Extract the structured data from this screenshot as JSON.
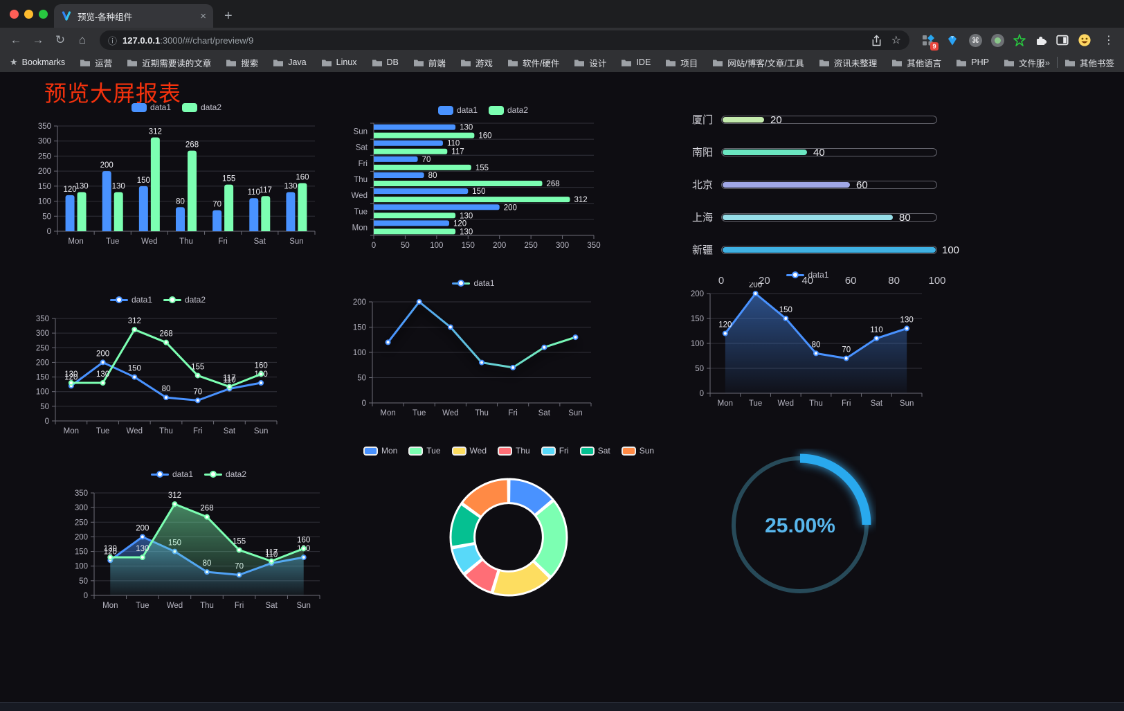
{
  "browser": {
    "traffic_lights": [
      "#ff5f57",
      "#febc2e",
      "#28c840"
    ],
    "tab": {
      "title": "预览-各种组件"
    },
    "glyphs": {
      "close": "×",
      "new_tab": "+",
      "back": "←",
      "forward": "→",
      "reload": "↻",
      "home": "⌂",
      "info": "ⓘ",
      "star": "☆",
      "command": "⌘",
      "menu": "⋮",
      "chevron": "»",
      "bookmark_star": "★"
    },
    "address": {
      "host": "127.0.0.1",
      "rest": ":3000/#/chart/preview/9"
    },
    "extensions_badge": "9",
    "bookmarks_label": "Bookmarks",
    "bookmarks": [
      "运营",
      "近期需要读的文章",
      "搜索",
      "Java",
      "Linux",
      "DB",
      "前端",
      "游戏",
      "软件/硬件",
      "设计",
      "IDE",
      "项目",
      "网站/博客/文章/工具",
      "资讯未整理",
      "其他语言",
      "PHP",
      "文件服务器"
    ],
    "other_bookmarks": "其他书签"
  },
  "page": {
    "title": "预览大屏报表",
    "title_color": "#f5320d",
    "background": "#0e0d12"
  },
  "chart_data": [
    {
      "id": "grouped-bar",
      "type": "bar",
      "legend_position": "top",
      "grid": true,
      "labels": true,
      "categories": [
        "Mon",
        "Tue",
        "Wed",
        "Thu",
        "Fri",
        "Sat",
        "Sun"
      ],
      "series": [
        {
          "name": "data1",
          "color": "#4992ff",
          "values": [
            120,
            200,
            150,
            80,
            70,
            110,
            130
          ]
        },
        {
          "name": "data2",
          "color": "#7cffb2",
          "values": [
            130,
            130,
            312,
            268,
            155,
            117,
            160
          ]
        }
      ],
      "ylim": [
        0,
        350
      ],
      "ytick": 50
    },
    {
      "id": "grouped-hbar",
      "type": "bar",
      "orientation": "horizontal",
      "legend_position": "top",
      "labels": true,
      "categories": [
        "Mon",
        "Tue",
        "Wed",
        "Thu",
        "Fri",
        "Sat",
        "Sun"
      ],
      "series": [
        {
          "name": "data1",
          "color": "#4992ff",
          "values": [
            120,
            200,
            150,
            80,
            70,
            110,
            130
          ]
        },
        {
          "name": "data2",
          "color": "#7cffb2",
          "values": [
            130,
            130,
            312,
            268,
            155,
            117,
            160
          ]
        }
      ],
      "xlim": [
        0,
        350
      ],
      "xtick": 50
    },
    {
      "id": "city-progress",
      "type": "bar",
      "subtype": "progress",
      "items": [
        {
          "label": "厦门",
          "value": 20,
          "color": "#c4ebad"
        },
        {
          "label": "南阳",
          "value": 40,
          "color": "#6be6c1"
        },
        {
          "label": "北京",
          "value": 60,
          "color": "#a0a7e6"
        },
        {
          "label": "上海",
          "value": 80,
          "color": "#96dee8"
        },
        {
          "label": "新疆",
          "value": 100,
          "color": "#3fb1e3"
        }
      ],
      "xlim": [
        0,
        100
      ],
      "xticks": [
        0,
        20,
        40,
        60,
        80,
        100
      ]
    },
    {
      "id": "two-line",
      "type": "line",
      "legend_position": "top",
      "labels": true,
      "categories": [
        "Mon",
        "Tue",
        "Wed",
        "Thu",
        "Fri",
        "Sat",
        "Sun"
      ],
      "series": [
        {
          "name": "data1",
          "color": "#4992ff",
          "values": [
            120,
            200,
            150,
            80,
            70,
            110,
            130
          ]
        },
        {
          "name": "data2",
          "color": "#7cffb2",
          "values": [
            130,
            130,
            312,
            268,
            155,
            117,
            160
          ]
        }
      ],
      "ylim": [
        0,
        350
      ],
      "ytick": 50
    },
    {
      "id": "gradient-line",
      "type": "line",
      "legend_position": "top",
      "labels": false,
      "shadow": true,
      "categories": [
        "Mon",
        "Tue",
        "Wed",
        "Thu",
        "Fri",
        "Sat",
        "Sun"
      ],
      "series": [
        {
          "name": "data1",
          "gradient": [
            "#4992ff",
            "#7cffb2"
          ],
          "values": [
            120,
            200,
            150,
            80,
            70,
            110,
            130
          ]
        }
      ],
      "ylim": [
        0,
        200
      ],
      "ytick": 50
    },
    {
      "id": "area-line",
      "type": "area",
      "legend_position": "top",
      "labels": true,
      "categories": [
        "Mon",
        "Tue",
        "Wed",
        "Thu",
        "Fri",
        "Sat",
        "Sun"
      ],
      "series": [
        {
          "name": "data1",
          "color": "#4992ff",
          "values": [
            120,
            200,
            150,
            80,
            70,
            110,
            130
          ]
        }
      ],
      "ylim": [
        0,
        200
      ],
      "ytick": 50
    },
    {
      "id": "two-area",
      "type": "area",
      "legend_position": "top",
      "labels": true,
      "categories": [
        "Mon",
        "Tue",
        "Wed",
        "Thu",
        "Fri",
        "Sat",
        "Sun"
      ],
      "series": [
        {
          "name": "data1",
          "color": "#4992ff",
          "values": [
            120,
            200,
            150,
            80,
            70,
            110,
            130
          ]
        },
        {
          "name": "data2",
          "color": "#7cffb2",
          "values": [
            130,
            130,
            312,
            268,
            155,
            117,
            160
          ]
        }
      ],
      "ylim": [
        0,
        350
      ],
      "ytick": 50
    },
    {
      "id": "week-donut",
      "type": "pie",
      "legend_position": "top",
      "inner_radius": 0.6,
      "categories": [
        "Mon",
        "Tue",
        "Wed",
        "Thu",
        "Fri",
        "Sat",
        "Sun"
      ],
      "values": [
        120,
        200,
        150,
        80,
        70,
        110,
        130
      ],
      "colors": [
        "#4992ff",
        "#7cffb2",
        "#fddd60",
        "#ff6e76",
        "#58d9f9",
        "#05c091",
        "#ff8a45"
      ]
    },
    {
      "id": "percent-gauge",
      "type": "gauge",
      "value": 25,
      "min": 0,
      "max": 100,
      "label": "25.00%",
      "color": "#29a9ee",
      "track_color": "#274a59",
      "text_color": "#58b6ec"
    }
  ]
}
